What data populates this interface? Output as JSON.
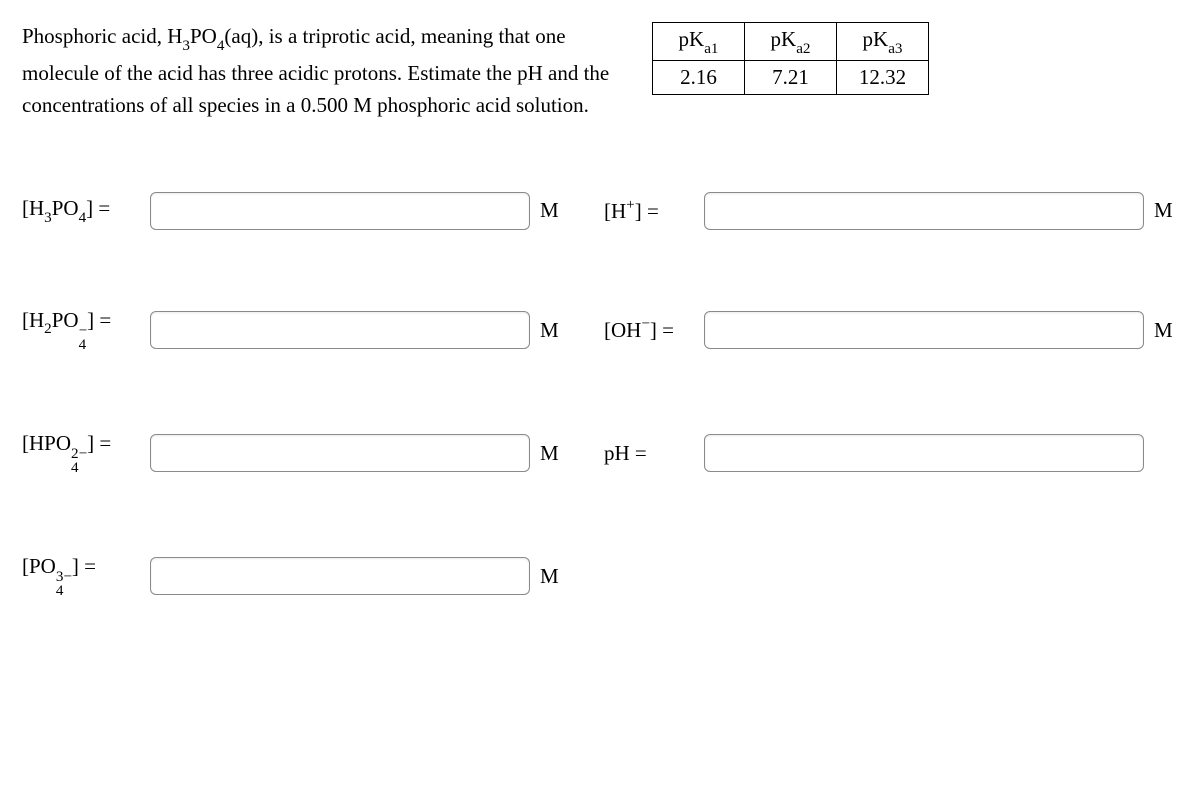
{
  "prompt": {
    "line1": "Phosphoric acid, H",
    "f_sub3": "3",
    "f_po": "PO",
    "f_sub4": "4",
    "line1b": "(aq), is a triprotic acid, meaning that",
    "line2": "one molecule of the acid has three acidic protons. Estimate",
    "line3": "the pH and the concentrations of all species in a 0.500 M",
    "line4": "phosphoric acid solution."
  },
  "pka": {
    "h1a": "pK",
    "h1b": "a1",
    "h2a": "pK",
    "h2b": "a2",
    "h3a": "pK",
    "h3b": "a3",
    "v1": "2.16",
    "v2": "7.21",
    "v3": "12.32"
  },
  "labels": {
    "h3po4_a": "[H",
    "h3po4_b": "3",
    "h3po4_c": "PO",
    "h3po4_d": "4",
    "h3po4_e": "] =",
    "h2po4_a": "[H",
    "h2po4_b": "2",
    "h2po4_c": "PO",
    "h2po4_sup": "−",
    "h2po4_sub": "4",
    "h2po4_e": "] =",
    "hpo4_a": "[HPO",
    "hpo4_sup": "2−",
    "hpo4_sub": "4",
    "hpo4_e": "] =",
    "po4_a": "[PO",
    "po4_sup": "3−",
    "po4_sub": "4",
    "po4_e": "] =",
    "hplus_a": "[H",
    "hplus_sup": "+",
    "hplus_e": "] =",
    "oh_a": "[OH",
    "oh_sup": "−",
    "oh_e": "] =",
    "ph": "pH ="
  },
  "unit": "M"
}
